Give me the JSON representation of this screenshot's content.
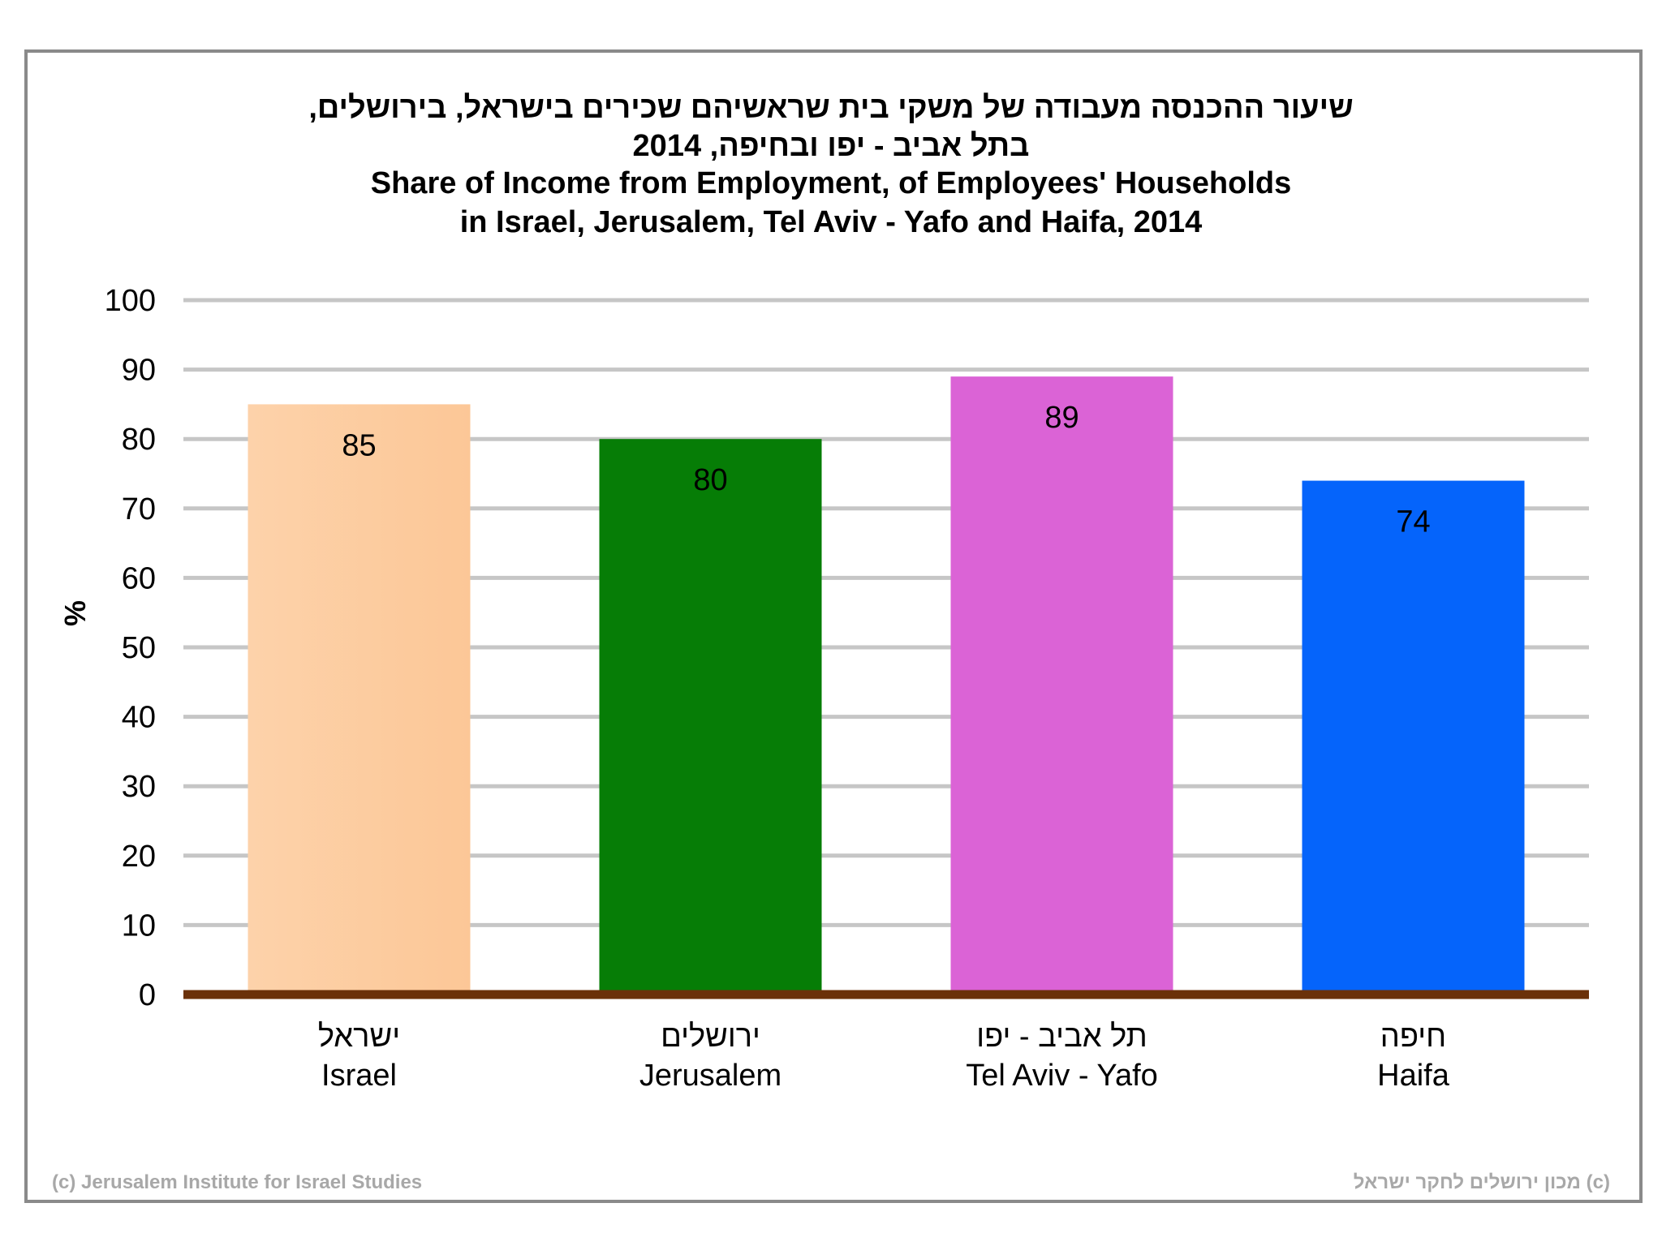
{
  "chart_data": {
    "type": "bar",
    "title_he": [
      "שיעור ההכנסה מעבודה של משקי בית שראשיהם שכירים בישראל, בירושלים,",
      "בתל אביב - יפו ובחיפה, 2014"
    ],
    "title_en": [
      "Share of Income from Employment, of Employees' Households",
      "in Israel, Jerusalem, Tel Aviv - Yafo and Haifa, 2014"
    ],
    "ylabel": "%",
    "xlabel": "",
    "ylim": [
      0,
      100
    ],
    "yticks": [
      0,
      10,
      20,
      30,
      40,
      50,
      60,
      70,
      80,
      90,
      100
    ],
    "grid": true,
    "legend": "none",
    "categories": [
      {
        "he": "ישראל",
        "en": "Israel"
      },
      {
        "he": "ירושלים",
        "en": "Jerusalem"
      },
      {
        "he": "תל אביב - יפו",
        "en": "Tel Aviv - Yafo"
      },
      {
        "he": "חיפה",
        "en": "Haifa"
      }
    ],
    "values": [
      85,
      80,
      89,
      74
    ],
    "colors": [
      "#FCC797",
      "#067D06",
      "#DB63D6",
      "#0564FB"
    ],
    "gridColor": "#c6c6c6",
    "baselineColor": "#6b3109"
  },
  "footer": {
    "left": "(c) Jerusalem Institute for Israel Studies",
    "right": "(c) מכון ירושלים לחקר ישראל"
  }
}
